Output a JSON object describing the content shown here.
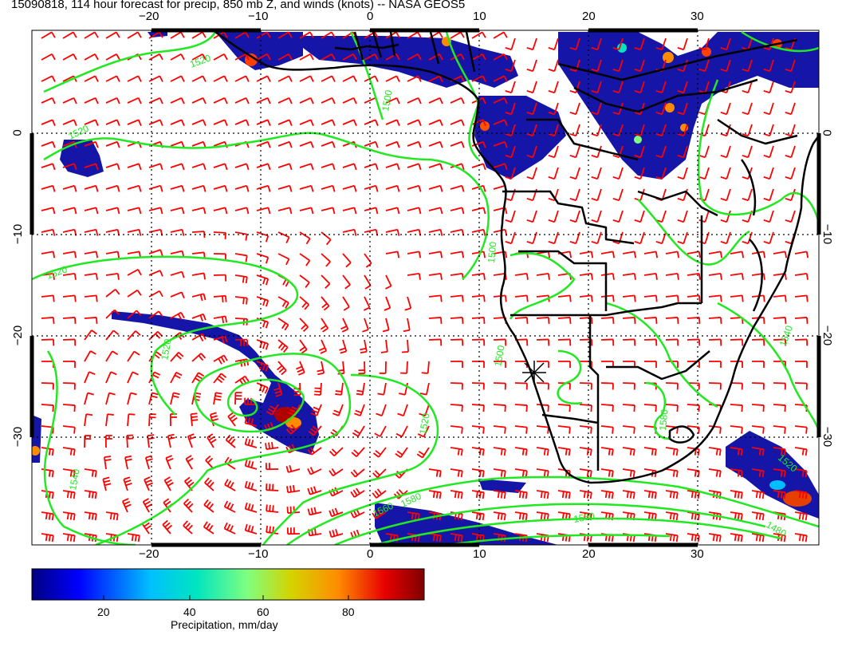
{
  "title": "15090818, 114 hour forecast for precip, 850 mb Z, and winds (knots) -- NASA GEOS5",
  "x_ticks": [
    "−20",
    "−10",
    "0",
    "10",
    "20",
    "30"
  ],
  "y_ticks": [
    "0",
    "−10",
    "−20",
    "−30"
  ],
  "colorbar": {
    "ticks": [
      "20",
      "40",
      "60",
      "80"
    ],
    "title": "Precipitation, mm/day",
    "colors": [
      "#00007f",
      "#0000ff",
      "#00bfff",
      "#00e5c0",
      "#7fff7f",
      "#d4d400",
      "#ff8c00",
      "#e60000",
      "#7f0000"
    ]
  },
  "contour_labels": [
    "1520",
    "1520",
    "1520",
    "1520",
    "1540",
    "1500",
    "1500",
    "1560",
    "1580",
    "1560",
    "1480",
    "1500",
    "1540",
    "1580",
    "1520",
    "1520"
  ],
  "colors": {
    "contour": "#22e822",
    "wind_barb": "#ff0000",
    "coastline": "#000000",
    "grid": "#000000"
  },
  "marker": "storm-center-marker"
}
